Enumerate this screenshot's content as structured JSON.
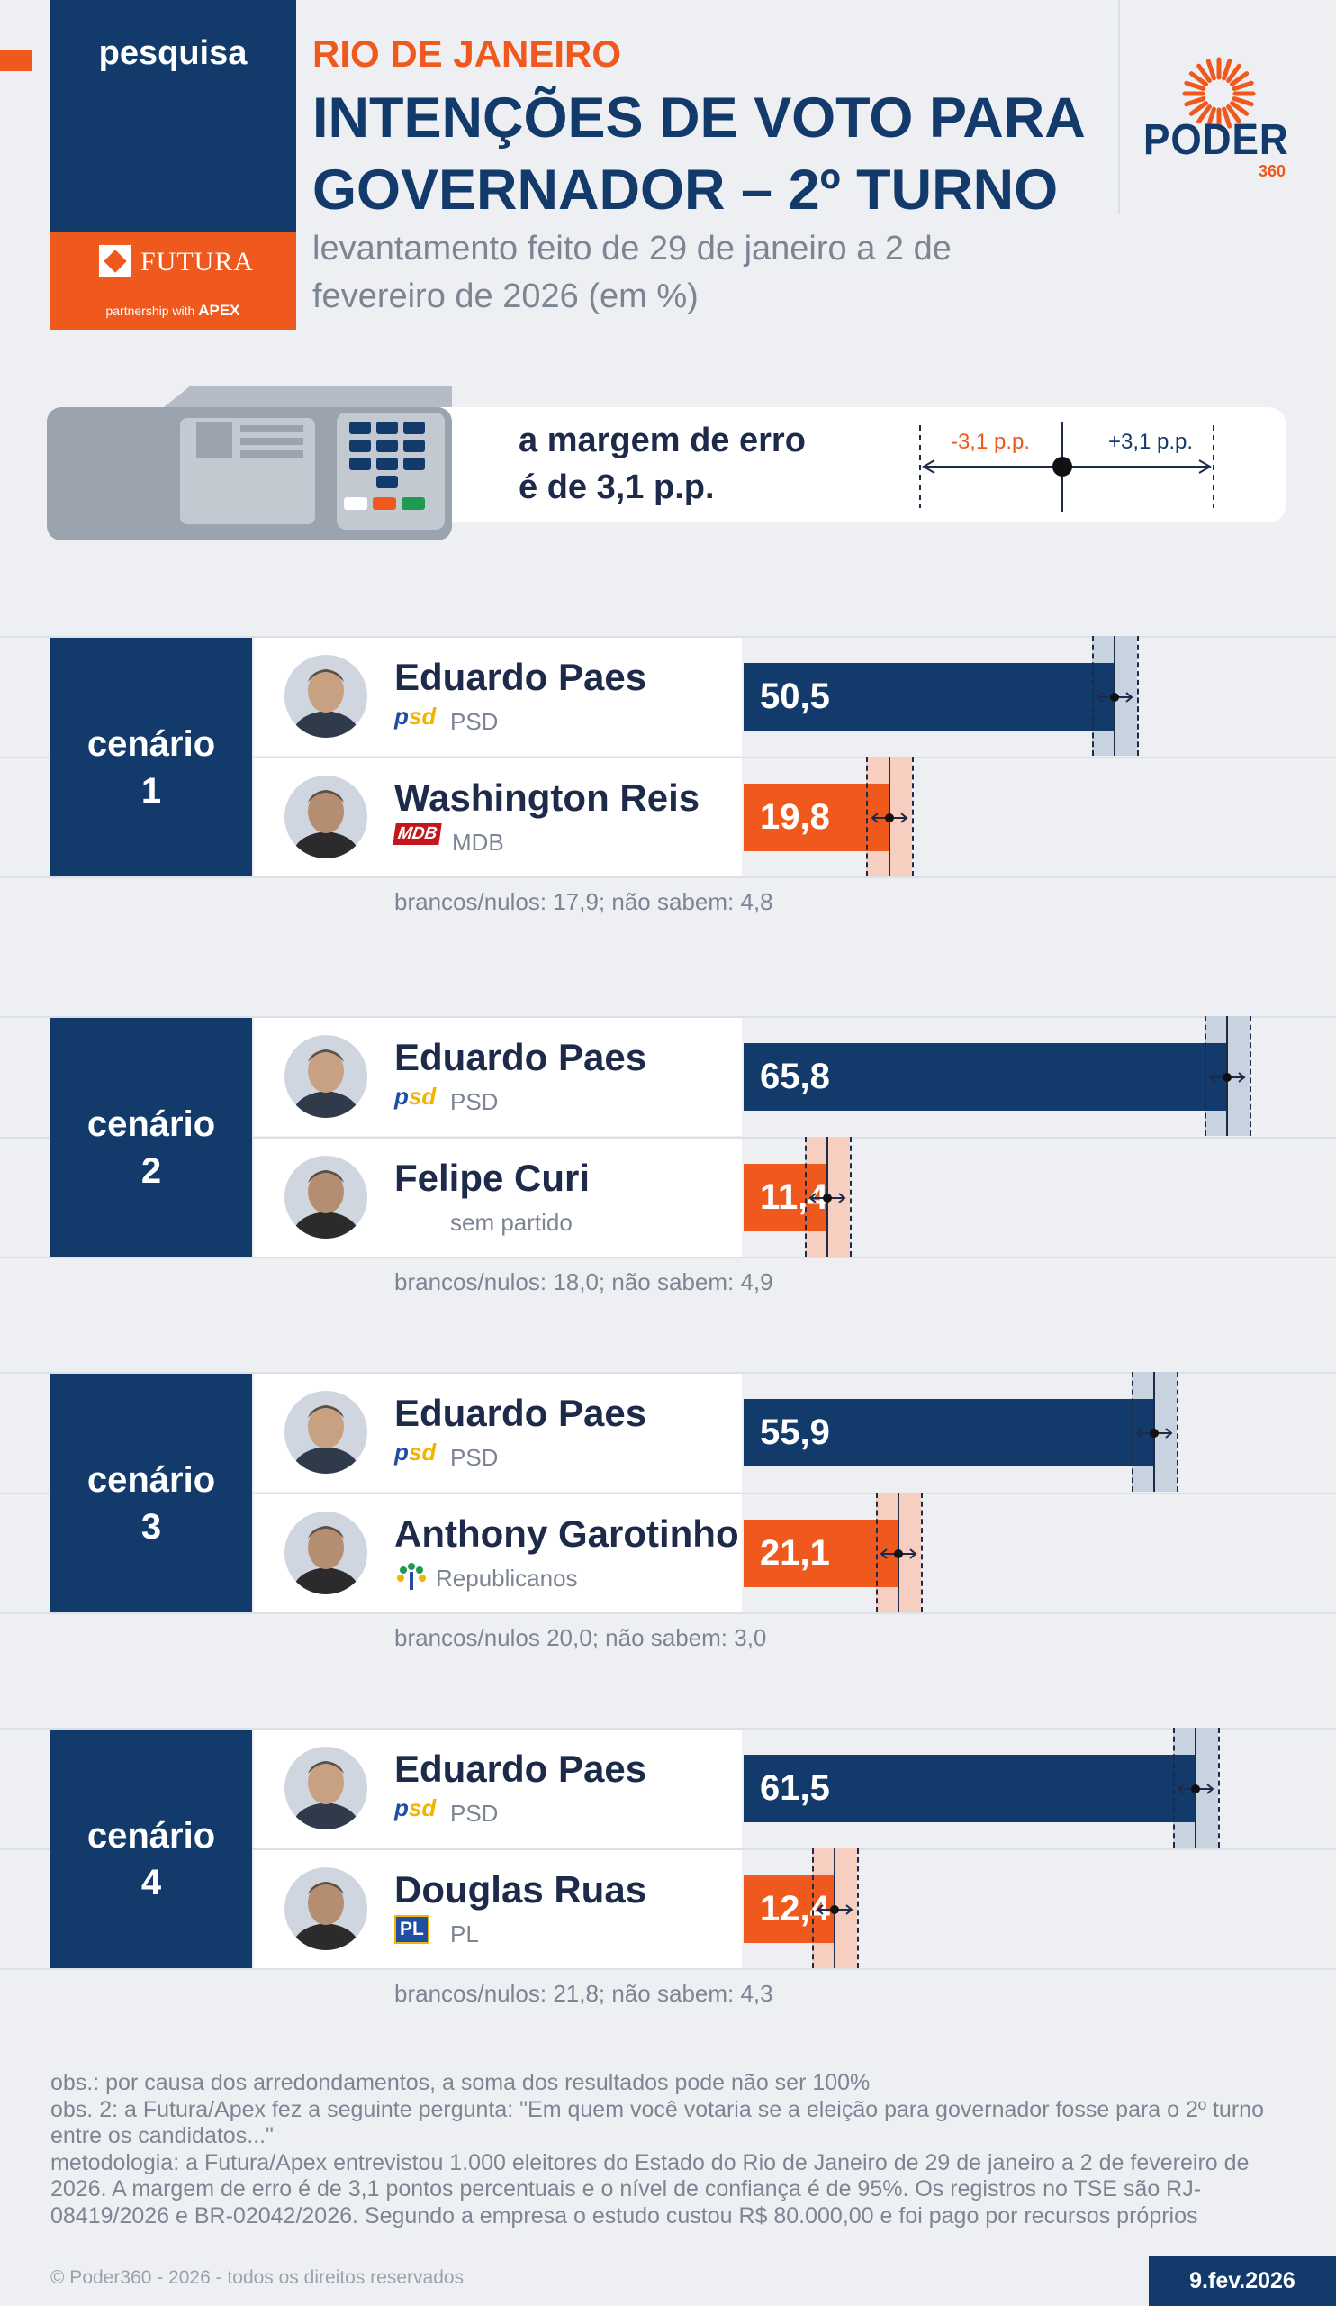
{
  "header": {
    "tag": "pesquisa",
    "pollster": "FUTURA",
    "partnership": "partnership with",
    "partner": "APEX",
    "region": "RIO DE JANEIRO",
    "title_line1": "INTENÇÕES DE VOTO PARA",
    "title_line2": "GOVERNADOR – 2º TURNO",
    "subtitle": "levantamento feito de 29 de janeiro a 2 de fevereiro de 2026 (em %)",
    "brand": "PODER",
    "brand_sub": "360"
  },
  "margin": {
    "line1": "a margem de erro",
    "line2": "é de 3,1 p.p.",
    "minus_label": "-3,1 p.p.",
    "plus_label": "+3,1 p.p."
  },
  "colors": {
    "navy": "#123a6b",
    "orange": "#f0591e",
    "navy_band": "#c8d3e0",
    "orange_band": "#f6cfc0"
  },
  "chart_data": {
    "type": "bar",
    "unit": "%",
    "margin_of_error": 3.1,
    "scenarios": [
      {
        "label": "cenário",
        "number": "1",
        "candidates": [
          {
            "name": "Eduardo Paes",
            "party": "PSD",
            "party_logo": "psd",
            "value": 50.5,
            "value_label": "50,5",
            "color": "navy"
          },
          {
            "name": "Washington Reis",
            "party": "MDB",
            "party_logo": "MDB",
            "value": 19.8,
            "value_label": "19,8",
            "color": "orange"
          }
        ],
        "note": "brancos/nulos: 17,9; não sabem: 4,8"
      },
      {
        "label": "cenário",
        "number": "2",
        "candidates": [
          {
            "name": "Eduardo Paes",
            "party": "PSD",
            "party_logo": "psd",
            "value": 65.8,
            "value_label": "65,8",
            "color": "navy"
          },
          {
            "name": "Felipe Curi",
            "party": "sem partido",
            "party_logo": "",
            "value": 11.4,
            "value_label": "11,4",
            "color": "orange"
          }
        ],
        "note": "brancos/nulos: 18,0; não sabem: 4,9"
      },
      {
        "label": "cenário",
        "number": "3",
        "candidates": [
          {
            "name": "Eduardo Paes",
            "party": "PSD",
            "party_logo": "psd",
            "value": 55.9,
            "value_label": "55,9",
            "color": "navy"
          },
          {
            "name": "Anthony Garotinho",
            "party": "Republicanos",
            "party_logo": "republicanos",
            "value": 21.1,
            "value_label": "21,1",
            "color": "orange"
          }
        ],
        "note": "brancos/nulos 20,0; não sabem: 3,0"
      },
      {
        "label": "cenário",
        "number": "4",
        "candidates": [
          {
            "name": "Eduardo Paes",
            "party": "PSD",
            "party_logo": "psd",
            "value": 61.5,
            "value_label": "61,5",
            "color": "navy"
          },
          {
            "name": "Douglas Ruas",
            "party": "PL",
            "party_logo": "PL",
            "value": 12.4,
            "value_label": "12,4",
            "color": "orange"
          }
        ],
        "note": "brancos/nulos: 21,8; não sabem: 4,3"
      }
    ]
  },
  "footer": {
    "notes": [
      "obs.: por causa dos arredondamentos, a soma dos resultados pode não ser 100%",
      "obs. 2: a Futura/Apex fez a seguinte pergunta: \"Em quem você votaria se a eleição para governador fosse para o 2º turno entre os candidatos...\"",
      "metodologia: a Futura/Apex entrevistou 1.000 eleitores do Estado do Rio de Janeiro de 29 de janeiro a 2 de fevereiro de 2026. A margem de erro é de 3,1 pontos percentuais e o nível de confiança é de 95%. Os registros no TSE são RJ-08419/2026 e BR-02042/2026. Segundo a empresa o estudo custou R$ 80.000,00 e foi pago por recursos próprios"
    ],
    "copyright": "© Poder360 - 2026 - todos os direitos reservados",
    "date": "9.fev.2026"
  }
}
